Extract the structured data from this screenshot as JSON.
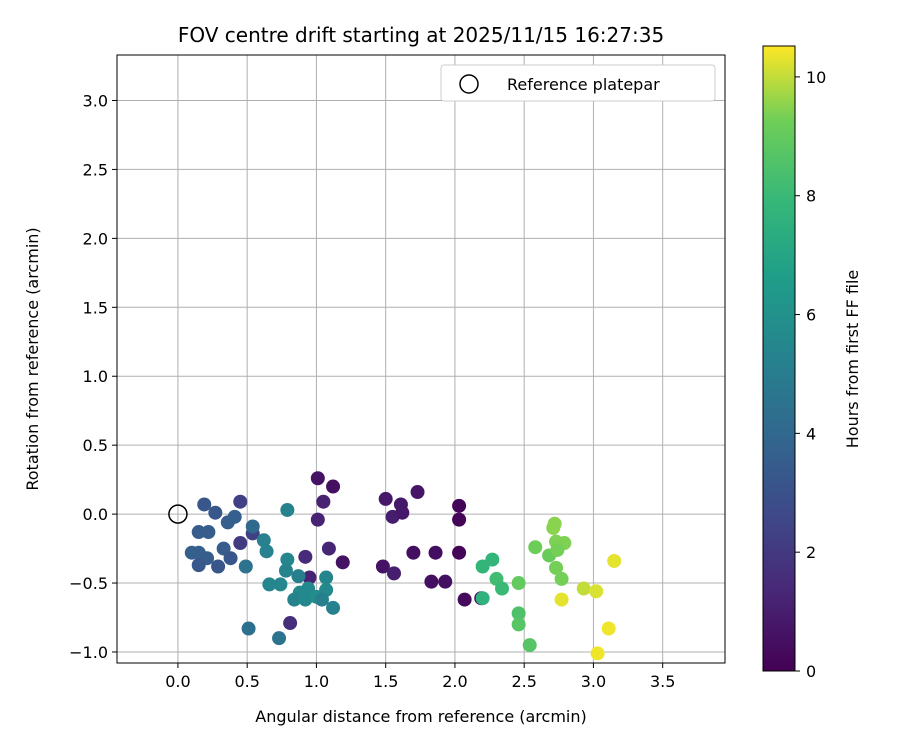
{
  "chart_data": {
    "type": "scatter",
    "title": "FOV centre drift starting at 2025/11/15 16:27:35",
    "xlabel": "Angular distance from reference (arcmin)",
    "ylabel": "Rotation from reference (arcmin)",
    "xlim": [
      -0.44,
      3.95
    ],
    "ylim": [
      -1.08,
      3.33
    ],
    "xticks": [
      0.0,
      0.5,
      1.0,
      1.5,
      2.0,
      2.5,
      3.0,
      3.5
    ],
    "xtick_labels": [
      "0.0",
      "0.5",
      "1.0",
      "1.5",
      "2.0",
      "2.5",
      "3.0",
      "3.5"
    ],
    "yticks": [
      -1.0,
      -0.5,
      0.0,
      0.5,
      1.0,
      1.5,
      2.0,
      2.5,
      3.0
    ],
    "ytick_labels": [
      "−1.0",
      "−0.5",
      "0.0",
      "0.5",
      "1.0",
      "1.5",
      "2.0",
      "2.5",
      "3.0"
    ],
    "grid": true,
    "legend": {
      "placement": "top-right",
      "entries": [
        "Reference platepar"
      ]
    },
    "reference_point": {
      "x": 0.0,
      "y": 0.0
    },
    "colorbar": {
      "label": "Hours from first FF file",
      "range": [
        0,
        10.52
      ],
      "ticks": [
        0,
        2,
        4,
        6,
        8,
        10
      ],
      "tick_labels": [
        "0",
        "2",
        "4",
        "6",
        "8",
        "10"
      ],
      "colormap": "viridis"
    },
    "points": [
      {
        "x": 1.5,
        "y": 0.11,
        "h": 0.8
      },
      {
        "x": 1.61,
        "y": 0.07,
        "h": 0.8
      },
      {
        "x": 1.73,
        "y": 0.16,
        "h": 0.7
      },
      {
        "x": 1.55,
        "y": -0.02,
        "h": 1.0
      },
      {
        "x": 1.62,
        "y": 0.01,
        "h": 0.8
      },
      {
        "x": 2.03,
        "y": 0.06,
        "h": 0.1
      },
      {
        "x": 2.03,
        "y": -0.04,
        "h": 0.1
      },
      {
        "x": 1.7,
        "y": -0.28,
        "h": 0.5
      },
      {
        "x": 1.86,
        "y": -0.28,
        "h": 0.5
      },
      {
        "x": 2.03,
        "y": -0.28,
        "h": 0.1
      },
      {
        "x": 1.48,
        "y": -0.38,
        "h": 0.6
      },
      {
        "x": 1.56,
        "y": -0.43,
        "h": 1.0
      },
      {
        "x": 1.83,
        "y": -0.49,
        "h": 0.5
      },
      {
        "x": 1.93,
        "y": -0.49,
        "h": 0.5
      },
      {
        "x": 2.07,
        "y": -0.62,
        "h": 0.3
      },
      {
        "x": 2.19,
        "y": -0.61,
        "h": 0.5
      },
      {
        "x": 2.2,
        "y": -0.61,
        "h": 7.6
      },
      {
        "x": 2.2,
        "y": -0.38,
        "h": 7.8
      },
      {
        "x": 2.27,
        "y": -0.33,
        "h": 7.8
      },
      {
        "x": 2.3,
        "y": -0.47,
        "h": 8.2
      },
      {
        "x": 2.34,
        "y": -0.54,
        "h": 8.0
      },
      {
        "x": 2.46,
        "y": -0.5,
        "h": 9.0
      },
      {
        "x": 2.46,
        "y": -0.72,
        "h": 8.5
      },
      {
        "x": 2.46,
        "y": -0.8,
        "h": 8.7
      },
      {
        "x": 2.54,
        "y": -0.95,
        "h": 8.7
      },
      {
        "x": 2.58,
        "y": -0.24,
        "h": 9.2
      },
      {
        "x": 2.68,
        "y": -0.3,
        "h": 9.1
      },
      {
        "x": 2.72,
        "y": -0.07,
        "h": 9.5
      },
      {
        "x": 2.71,
        "y": -0.1,
        "h": 9.5
      },
      {
        "x": 2.73,
        "y": -0.2,
        "h": 9.4
      },
      {
        "x": 2.79,
        "y": -0.21,
        "h": 9.4
      },
      {
        "x": 2.74,
        "y": -0.26,
        "h": 9.3
      },
      {
        "x": 2.73,
        "y": -0.39,
        "h": 9.3
      },
      {
        "x": 2.77,
        "y": -0.47,
        "h": 9.3
      },
      {
        "x": 3.15,
        "y": -0.34,
        "h": 10.3
      },
      {
        "x": 2.93,
        "y": -0.54,
        "h": 10.0
      },
      {
        "x": 3.02,
        "y": -0.56,
        "h": 10.2
      },
      {
        "x": 2.77,
        "y": -0.62,
        "h": 10.3
      },
      {
        "x": 3.11,
        "y": -0.83,
        "h": 10.4
      },
      {
        "x": 3.03,
        "y": -1.01,
        "h": 10.4
      },
      {
        "x": 1.01,
        "y": 0.26,
        "h": 0.6
      },
      {
        "x": 1.12,
        "y": 0.2,
        "h": 0.5
      },
      {
        "x": 1.05,
        "y": 0.09,
        "h": 1.2
      },
      {
        "x": 1.01,
        "y": -0.04,
        "h": 1.2
      },
      {
        "x": 1.09,
        "y": -0.25,
        "h": 1.3
      },
      {
        "x": 1.19,
        "y": -0.35,
        "h": 0.6
      },
      {
        "x": 0.92,
        "y": -0.31,
        "h": 1.5
      },
      {
        "x": 0.95,
        "y": -0.46,
        "h": 1.2
      },
      {
        "x": 0.81,
        "y": -0.79,
        "h": 1.6
      },
      {
        "x": 0.45,
        "y": 0.09,
        "h": 2.3
      },
      {
        "x": 0.45,
        "y": -0.21,
        "h": 2.1
      },
      {
        "x": 0.54,
        "y": -0.14,
        "h": 2.3
      },
      {
        "x": 0.19,
        "y": 0.07,
        "h": 3.2
      },
      {
        "x": 0.27,
        "y": 0.01,
        "h": 3.3
      },
      {
        "x": 0.36,
        "y": -0.06,
        "h": 3.6
      },
      {
        "x": 0.41,
        "y": -0.02,
        "h": 3.6
      },
      {
        "x": 0.15,
        "y": -0.13,
        "h": 3.5
      },
      {
        "x": 0.22,
        "y": -0.13,
        "h": 3.5
      },
      {
        "x": 0.1,
        "y": -0.28,
        "h": 3.6
      },
      {
        "x": 0.15,
        "y": -0.28,
        "h": 3.6
      },
      {
        "x": 0.21,
        "y": -0.32,
        "h": 3.5
      },
      {
        "x": 0.15,
        "y": -0.37,
        "h": 3.3
      },
      {
        "x": 0.29,
        "y": -0.38,
        "h": 3.2
      },
      {
        "x": 0.33,
        "y": -0.25,
        "h": 3.5
      },
      {
        "x": 0.38,
        "y": -0.32,
        "h": 3.2
      },
      {
        "x": 0.54,
        "y": -0.09,
        "h": 4.0
      },
      {
        "x": 0.49,
        "y": -0.38,
        "h": 4.5
      },
      {
        "x": 0.79,
        "y": 0.03,
        "h": 5.3
      },
      {
        "x": 0.62,
        "y": -0.19,
        "h": 5.2
      },
      {
        "x": 0.64,
        "y": -0.27,
        "h": 5.2
      },
      {
        "x": 0.79,
        "y": -0.33,
        "h": 5.5
      },
      {
        "x": 0.78,
        "y": -0.41,
        "h": 5.3
      },
      {
        "x": 0.87,
        "y": -0.45,
        "h": 5.1
      },
      {
        "x": 0.66,
        "y": -0.51,
        "h": 5.5
      },
      {
        "x": 0.74,
        "y": -0.51,
        "h": 5.5
      },
      {
        "x": 1.07,
        "y": -0.46,
        "h": 5.4
      },
      {
        "x": 1.07,
        "y": -0.55,
        "h": 5.6
      },
      {
        "x": 0.94,
        "y": -0.54,
        "h": 5.6
      },
      {
        "x": 0.88,
        "y": -0.57,
        "h": 5.6
      },
      {
        "x": 0.84,
        "y": -0.62,
        "h": 5.3
      },
      {
        "x": 0.92,
        "y": -0.62,
        "h": 5.6
      },
      {
        "x": 1.0,
        "y": -0.6,
        "h": 5.8
      },
      {
        "x": 1.04,
        "y": -0.62,
        "h": 5.1
      },
      {
        "x": 1.12,
        "y": -0.68,
        "h": 5.2
      },
      {
        "x": 0.51,
        "y": -0.83,
        "h": 4.4
      },
      {
        "x": 0.73,
        "y": -0.9,
        "h": 4.6
      }
    ]
  }
}
